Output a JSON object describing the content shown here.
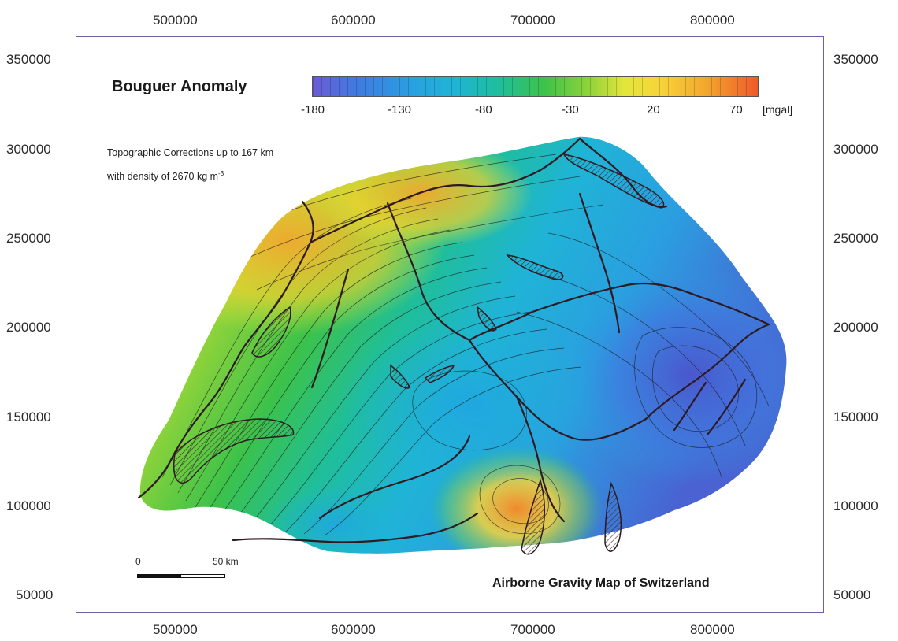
{
  "map": {
    "title": "Bouguer Anomaly",
    "subtitle": "Airborne Gravity Map of Switzerland",
    "note_line1": "Topographic Corrections up to 167 km",
    "note_line2_prefix": "with density of 2670 kg m",
    "note_line2_sup": "-3",
    "colorbar": {
      "ticks": [
        "-180",
        "-130",
        "-80",
        "-30",
        "20",
        "70"
      ],
      "unit": "[mgal]",
      "colors": [
        "#6c5bd6",
        "#2a9fe0",
        "#1fbe9a",
        "#3cc24a",
        "#e3e63a",
        "#f3a82e",
        "#ef5a2a"
      ]
    },
    "x_ticks": [
      "500000",
      "600000",
      "700000",
      "800000"
    ],
    "y_ticks": [
      "350000",
      "300000",
      "250000",
      "200000",
      "150000",
      "100000",
      "50000"
    ],
    "scale": {
      "start_label": "0",
      "end_label": "50 km"
    }
  }
}
